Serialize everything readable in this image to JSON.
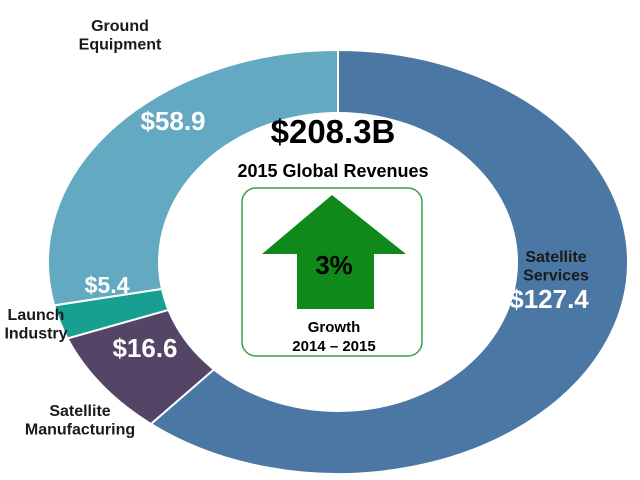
{
  "chart_data": {
    "type": "pie",
    "variant": "donut",
    "title": "$208.3B",
    "subtitle": "2015 Global Revenues",
    "slices": [
      {
        "name": "Satellite Services",
        "label_lines": [
          "Satellite",
          "Services"
        ],
        "value": 127.4,
        "value_label": "$127.4",
        "color": "#4a77a3"
      },
      {
        "name": "Satellite Manufacturing",
        "label_lines": [
          "Satellite",
          "Manufacturing"
        ],
        "value": 16.6,
        "value_label": "$16.6",
        "color": "#544566"
      },
      {
        "name": "Launch Industry",
        "label_lines": [
          "Launch",
          "Industry"
        ],
        "value": 5.4,
        "value_label": "$5.4",
        "color": "#17a092"
      },
      {
        "name": "Ground Equipment",
        "label_lines": [
          "Ground",
          "Equipment"
        ],
        "value": 58.9,
        "value_label": "$58.9",
        "color": "#63a9c2"
      }
    ],
    "growth": {
      "value": "3%",
      "label": "Growth",
      "period": "2014 – 2015",
      "arrow_color": "#0f8a1a",
      "box_border_color": "#3f9d3f"
    }
  }
}
